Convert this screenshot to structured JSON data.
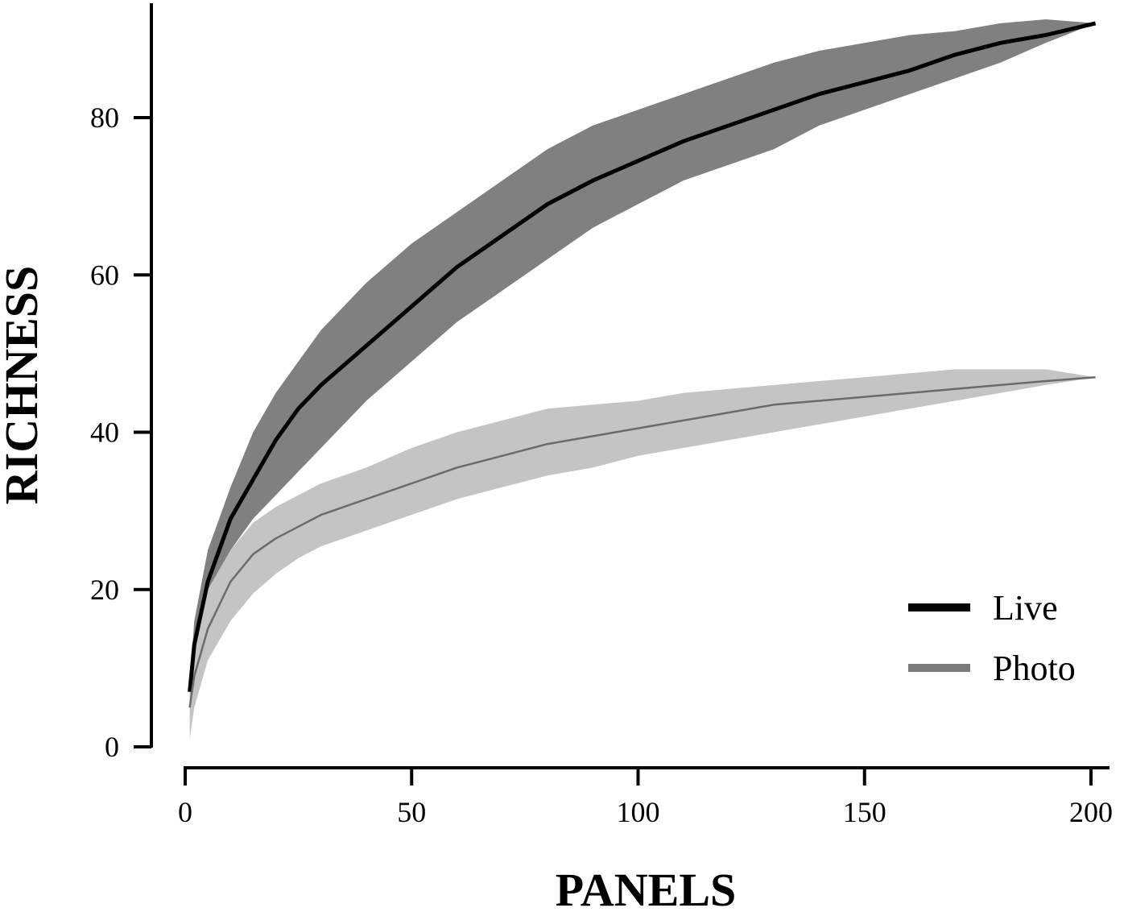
{
  "chart_data": {
    "type": "line",
    "xlabel": "PANELS",
    "ylabel": "RICHNESS",
    "xlim": [
      0,
      202
    ],
    "ylim": [
      0,
      94
    ],
    "x_ticks": [
      0,
      50,
      100,
      150,
      200
    ],
    "y_ticks": [
      0,
      20,
      40,
      60,
      80
    ],
    "grid": false,
    "legend_position": "bottom-right",
    "series": [
      {
        "name": "Live",
        "color": "#000000",
        "band_color": "#808080",
        "x": [
          1,
          2,
          5,
          10,
          15,
          20,
          25,
          30,
          40,
          50,
          60,
          70,
          80,
          90,
          100,
          110,
          120,
          130,
          140,
          150,
          160,
          170,
          180,
          190,
          201
        ],
        "y": [
          7,
          13,
          21,
          29,
          34,
          39,
          43,
          46,
          51,
          56,
          61,
          65,
          69,
          72,
          74.5,
          77,
          79,
          81,
          83,
          84.5,
          86,
          88,
          89.5,
          90.5,
          92
        ],
        "lower": [
          6,
          10,
          18,
          25,
          29,
          32,
          35,
          38,
          44,
          49,
          54,
          58,
          62,
          66,
          69,
          72,
          74,
          76,
          79,
          81,
          83,
          85,
          87,
          89.5,
          92
        ],
        "upper": [
          8,
          16,
          25,
          33,
          40,
          45,
          49,
          53,
          59,
          64,
          68,
          72,
          76,
          79,
          81,
          83,
          85,
          87,
          88.5,
          89.5,
          90.5,
          91,
          92,
          92.5,
          92
        ]
      },
      {
        "name": "Photo",
        "color": "#6b6b6b",
        "band_color": "#c4c4c4",
        "x": [
          1,
          2,
          5,
          10,
          15,
          20,
          25,
          30,
          40,
          50,
          60,
          70,
          80,
          90,
          100,
          110,
          120,
          130,
          140,
          150,
          160,
          170,
          180,
          190,
          201
        ],
        "y": [
          5,
          9,
          15,
          21,
          24.5,
          26.5,
          28,
          29.5,
          31.5,
          33.5,
          35.5,
          37,
          38.5,
          39.5,
          40.5,
          41.5,
          42.5,
          43.5,
          44,
          44.5,
          45,
          45.5,
          46,
          46.5,
          47
        ],
        "lower": [
          1,
          5,
          11,
          16,
          19.5,
          22,
          24,
          25.5,
          27.5,
          29.5,
          31.5,
          33,
          34.5,
          35.5,
          37,
          38,
          39,
          40,
          41,
          42,
          43,
          44,
          45,
          46,
          47
        ],
        "upper": [
          8,
          14,
          20,
          25,
          28.5,
          30.5,
          32,
          33.5,
          35.5,
          38,
          40,
          41.5,
          43,
          43.5,
          44,
          45,
          45.5,
          46,
          46.5,
          47,
          47.5,
          48,
          48,
          48,
          47
        ]
      }
    ]
  }
}
